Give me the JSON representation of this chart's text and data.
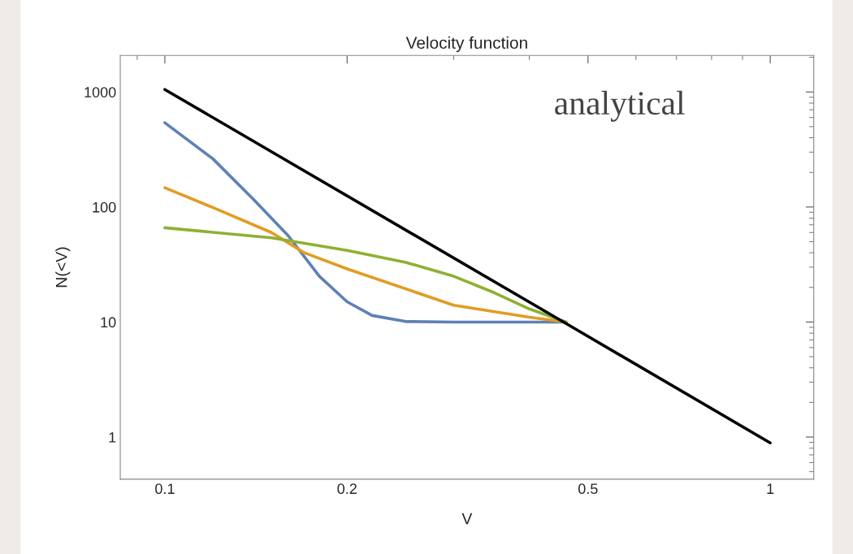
{
  "chart_data": {
    "type": "line",
    "title": "Velocity function",
    "xlabel": "V",
    "ylabel": "N(<V)",
    "log": "xy",
    "xlim": [
      0.0844,
      1.18
    ],
    "ylim": [
      0.43,
      2080
    ],
    "xticks": [
      0.1,
      0.2,
      0.5,
      1
    ],
    "yticks": [
      1,
      10,
      100,
      1000
    ],
    "grid": false,
    "marker": "none",
    "line_style": "solid",
    "annotations": [
      "analytical"
    ],
    "series": [
      {
        "color": "#5e81b5",
        "x": [
          0.1,
          0.12,
          0.14,
          0.16,
          0.18,
          0.2,
          0.22,
          0.25,
          0.3,
          0.46
        ],
        "values": [
          540,
          263,
          117,
          56,
          25,
          15,
          11.4,
          10.1,
          10,
          10
        ]
      },
      {
        "color": "#e19c24",
        "x": [
          0.1,
          0.12,
          0.15,
          0.17,
          0.2,
          0.3,
          0.4,
          0.46
        ],
        "values": [
          147,
          99,
          60,
          40,
          29,
          14,
          11,
          10
        ]
      },
      {
        "color": "#8fb032",
        "x": [
          0.1,
          0.15,
          0.2,
          0.25,
          0.3,
          0.35,
          0.4,
          0.46
        ],
        "values": [
          66,
          54,
          42,
          33,
          25,
          18,
          13,
          10
        ]
      },
      {
        "color": "#000000",
        "x": [
          0.1,
          0.46,
          1
        ],
        "values": [
          1050,
          9.7,
          0.89
        ]
      }
    ]
  }
}
